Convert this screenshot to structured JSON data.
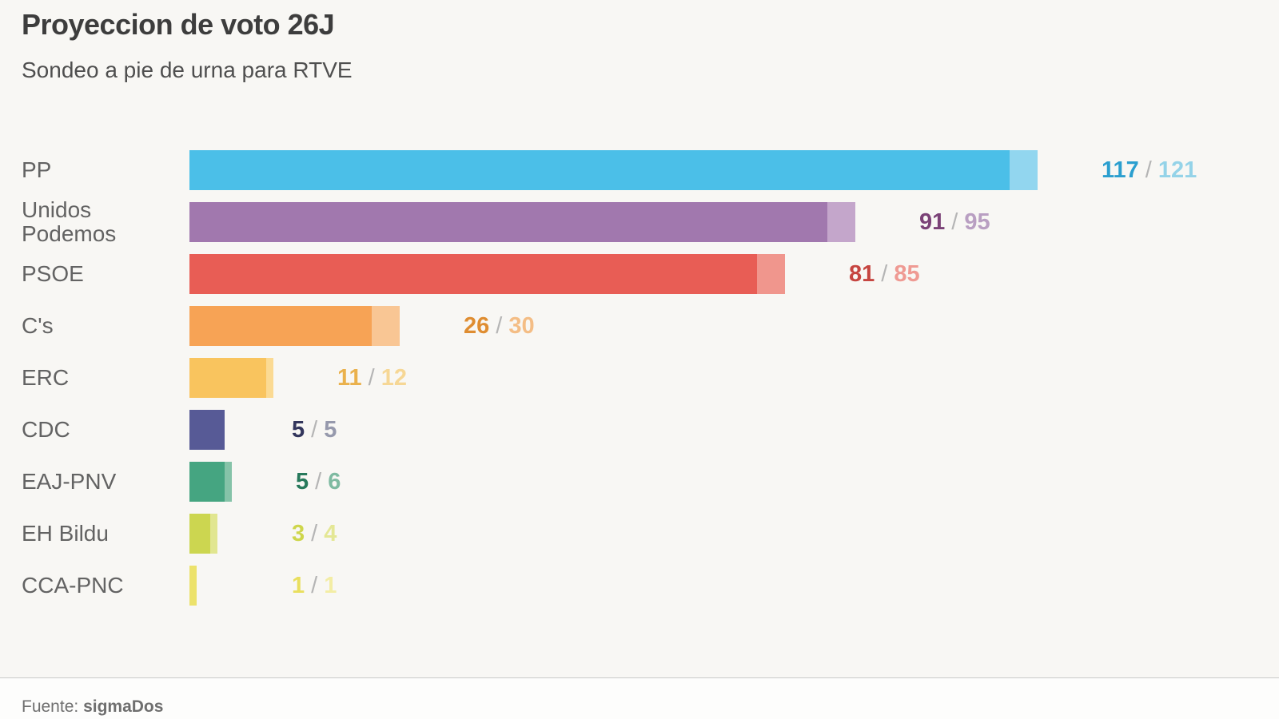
{
  "header": {
    "title": "Proyeccion de voto 26J",
    "subtitle": "Sondeo a pie de urna para RTVE"
  },
  "footer": {
    "source_label": "Fuente:",
    "source_value": "sigmaDos"
  },
  "chart_data": {
    "type": "bar",
    "orientation": "horizontal",
    "title": "Proyeccion de voto 26J",
    "subtitle": "Sondeo a pie de urna para RTVE",
    "unit": "escaños (seats)",
    "value_format": "projected / projected_max",
    "separator": "/",
    "separator_color": "#b5b5b5",
    "xlim": [
      0,
      130
    ],
    "grid": false,
    "legend": false,
    "categories": [
      "PP",
      "Unidos Podemos",
      "PSOE",
      "C's",
      "ERC",
      "CDC",
      "EAJ-PNV",
      "EH Bildu",
      "CCA-PNC"
    ],
    "series": [
      {
        "name": "PP",
        "projected": 117,
        "projected_max": 121,
        "bar_color": "#4bbfe8",
        "bar_color_light": "#92d6ef",
        "value_color": "#2b9fcf",
        "value_max_color": "#94d3e8"
      },
      {
        "name": "Unidos Podemos",
        "projected": 91,
        "projected_max": 95,
        "bar_color": "#a178ae",
        "bar_color_light": "#c4a6cb",
        "value_color": "#7b4277",
        "value_max_color": "#b99fc2"
      },
      {
        "name": "PSOE",
        "projected": 81,
        "projected_max": 85,
        "bar_color": "#e85d55",
        "bar_color_light": "#f0968d",
        "value_color": "#c64540",
        "value_max_color": "#ef9a93"
      },
      {
        "name": "C's",
        "projected": 26,
        "projected_max": 30,
        "bar_color": "#f7a355",
        "bar_color_light": "#f9c694",
        "value_color": "#df8d31",
        "value_max_color": "#f4bd85"
      },
      {
        "name": "ERC",
        "projected": 11,
        "projected_max": 12,
        "bar_color": "#f9c45e",
        "bar_color_light": "#fbda93",
        "value_color": "#eab14c",
        "value_max_color": "#f6d795"
      },
      {
        "name": "CDC",
        "projected": 5,
        "projected_max": 5,
        "bar_color": "#575a96",
        "bar_color_light": "#9b9dc0",
        "value_color": "#33365c",
        "value_max_color": "#9699ac"
      },
      {
        "name": "EAJ-PNV",
        "projected": 5,
        "projected_max": 6,
        "bar_color": "#45a581",
        "bar_color_light": "#85c3a8",
        "value_color": "#27795b",
        "value_max_color": "#7ebaa1"
      },
      {
        "name": "EH Bildu",
        "projected": 3,
        "projected_max": 4,
        "bar_color": "#ccd650",
        "bar_color_light": "#e1e690",
        "value_color": "#ced64b",
        "value_max_color": "#e4e795"
      },
      {
        "name": "CCA-PNC",
        "projected": 1,
        "projected_max": 1,
        "bar_color": "#ece26b",
        "bar_color_light": "#f2eba0",
        "value_color": "#e9df5d",
        "value_max_color": "#f3eda4"
      }
    ]
  }
}
